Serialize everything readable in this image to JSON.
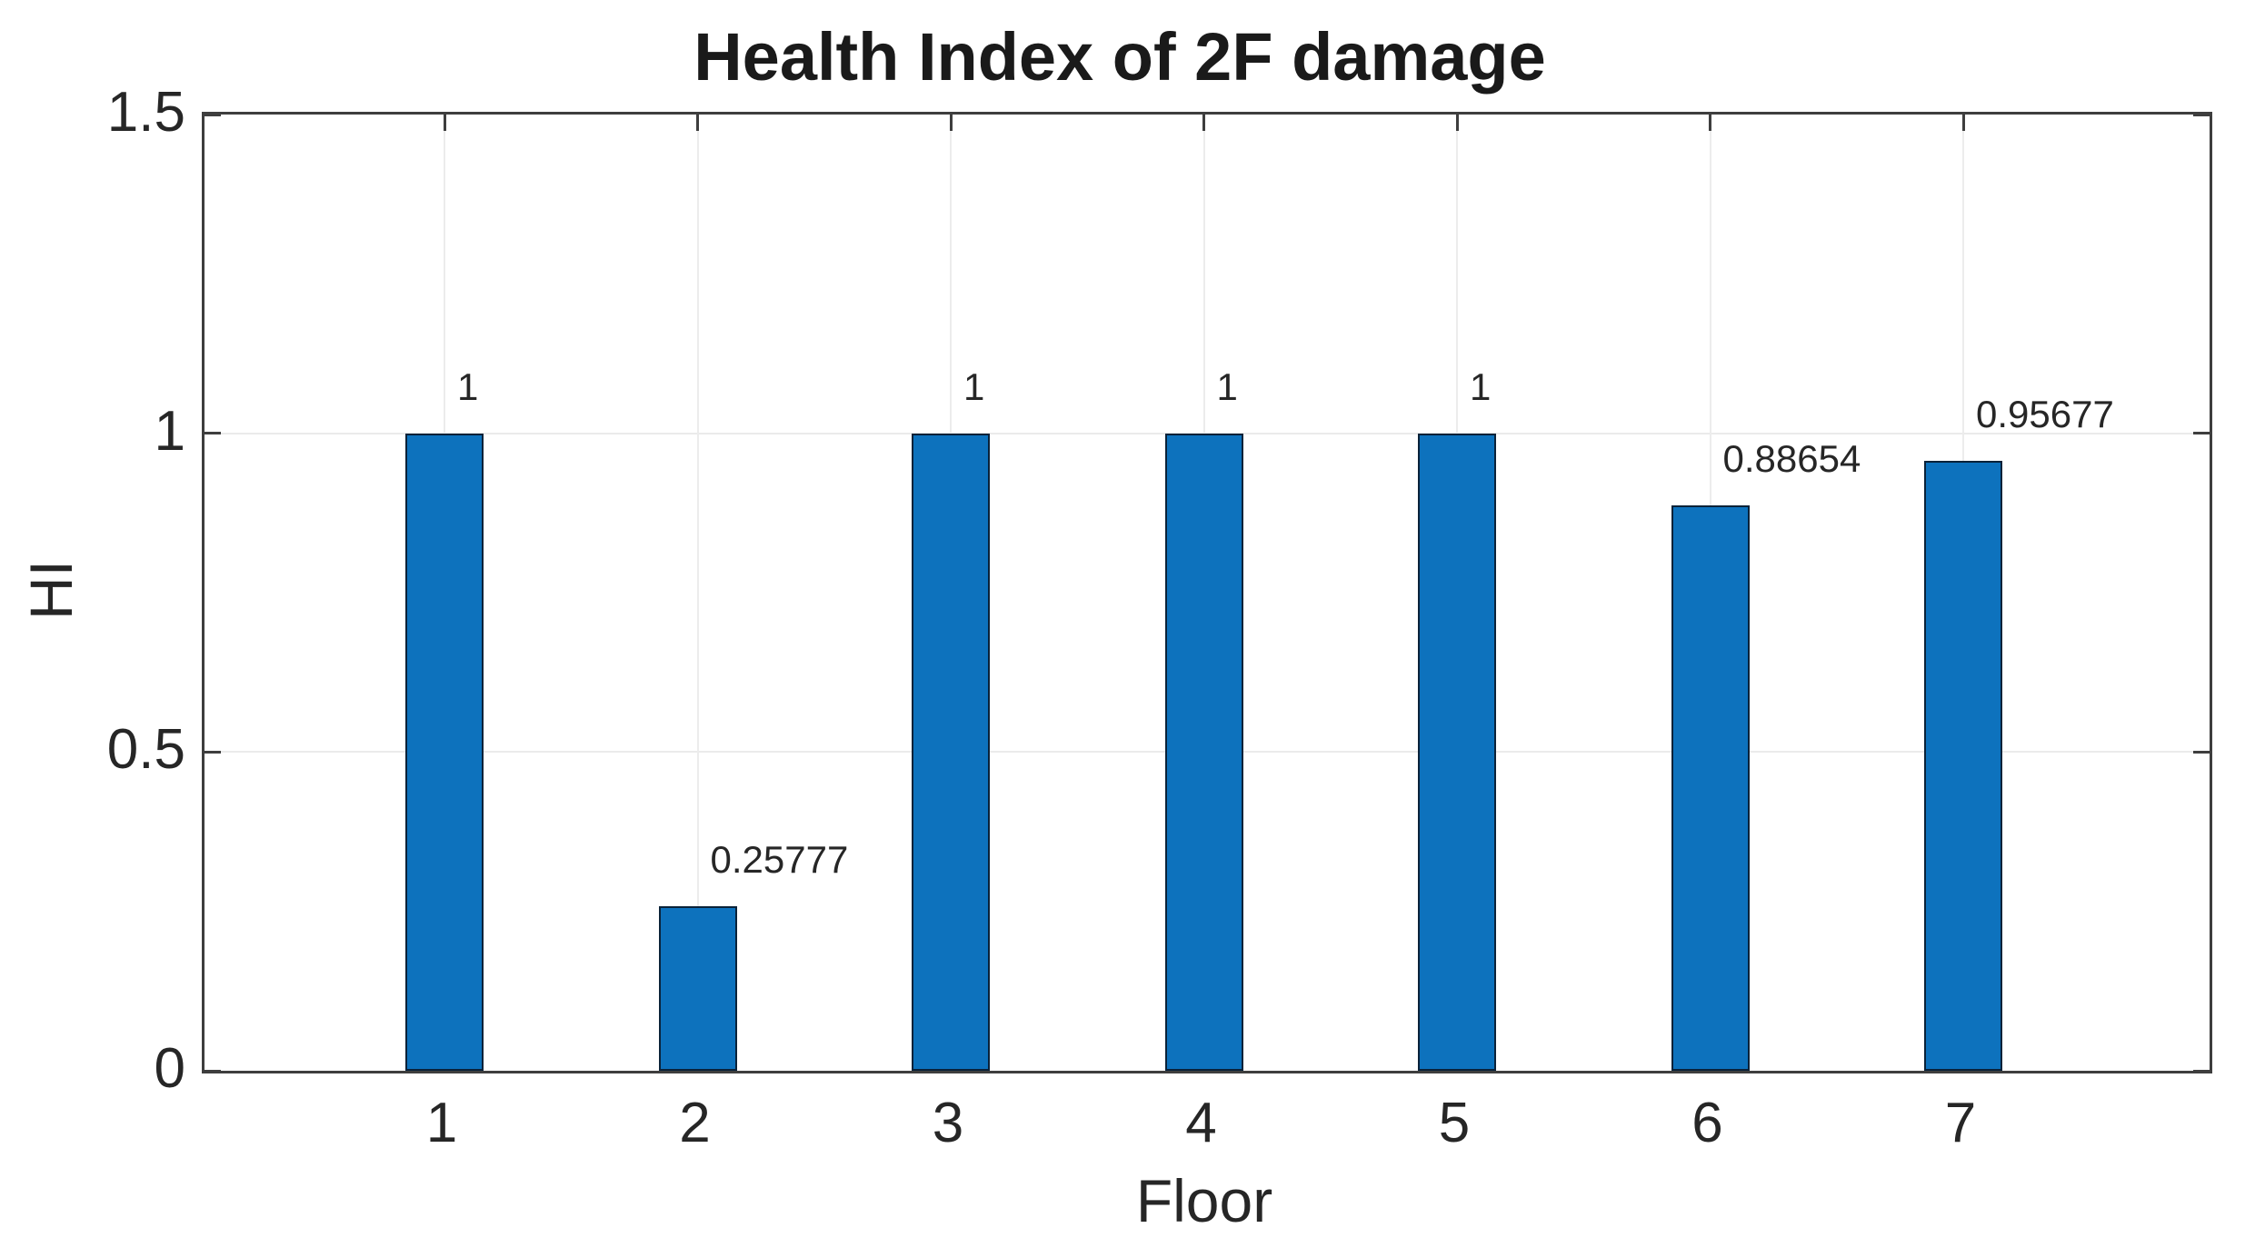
{
  "figure": {
    "title": "Health Index of 2F damage",
    "xlabel": "Floor",
    "ylabel": "HI"
  },
  "chart_data": {
    "type": "bar",
    "title": "Health Index of 2F damage",
    "xlabel": "Floor",
    "ylabel": "HI",
    "categories": [
      "1",
      "2",
      "3",
      "4",
      "5",
      "6",
      "7"
    ],
    "values": [
      1,
      0.25777,
      1,
      1,
      1,
      0.88654,
      0.95677
    ],
    "bar_labels": [
      "1",
      "0.25777",
      "1",
      "1",
      "1",
      "0.88654",
      "0.95677"
    ],
    "series_name": "HI",
    "ylim": [
      0,
      1.5
    ],
    "yticks": [
      0,
      0.5,
      1,
      1.5
    ],
    "ytick_labels": [
      "0",
      "0.5",
      "1",
      "1.5"
    ],
    "grid": true,
    "legend_position": "none",
    "colors": {
      "bar_fill": "#0d72bd",
      "bar_edge": "#0a2239",
      "axis": "#3e3e3e",
      "grid_horizontal": "#ebebeb",
      "grid_vertical": "#ececec",
      "text": "#262626",
      "background": "#ffffff"
    }
  }
}
